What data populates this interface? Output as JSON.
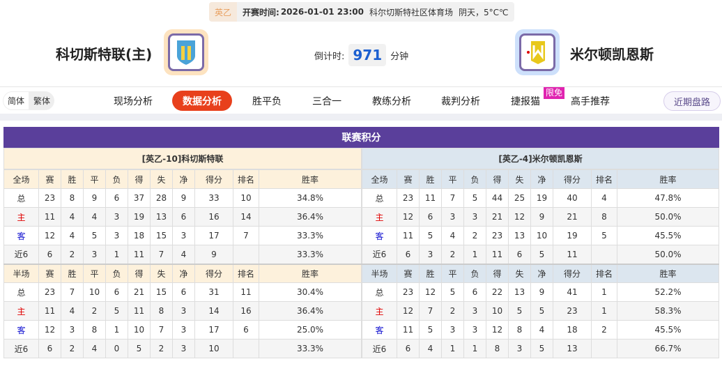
{
  "match": {
    "league": "英乙",
    "time_label": "开赛时间:",
    "time": "2026-01-01 23:00",
    "venue": "科尔切斯特社区体育场",
    "weather": "阴天，5°C℃",
    "home": "科切斯特联(主)",
    "away": "米尔顿凯恩斯",
    "countdown_label": "倒计时:",
    "countdown": "971",
    "countdown_unit": "分钟"
  },
  "nav": {
    "lang": [
      "简体",
      "繁体"
    ],
    "tabs": [
      "现场分析",
      "数据分析",
      "胜平负",
      "三合一",
      "教练分析",
      "裁判分析",
      "捷报猫",
      "高手推荐"
    ],
    "active": "数据分析",
    "badge": "限免",
    "recent": "近期盘路"
  },
  "colors": {
    "accent": "#e8401c",
    "title_bar": "#5a3f9b",
    "home_header": "#fdf1dc",
    "away_header": "#dce6ef"
  },
  "standings": {
    "title": "联赛积分",
    "columns_full": [
      "全场",
      "赛",
      "胜",
      "平",
      "负",
      "得",
      "失",
      "净",
      "得分",
      "排名",
      "胜率"
    ],
    "columns_half": [
      "半场",
      "赛",
      "胜",
      "平",
      "负",
      "得",
      "失",
      "净",
      "得分",
      "排名",
      "胜率"
    ],
    "home": {
      "header": "[英乙-10]科切斯特联",
      "full": [
        [
          "总",
          "23",
          "8",
          "9",
          "6",
          "37",
          "28",
          "9",
          "33",
          "10",
          "34.8%"
        ],
        [
          "主",
          "11",
          "4",
          "4",
          "3",
          "19",
          "13",
          "6",
          "16",
          "14",
          "36.4%"
        ],
        [
          "客",
          "12",
          "4",
          "5",
          "3",
          "18",
          "15",
          "3",
          "17",
          "7",
          "33.3%"
        ],
        [
          "近6",
          "6",
          "2",
          "3",
          "1",
          "11",
          "7",
          "4",
          "9",
          "",
          "33.3%"
        ]
      ],
      "half": [
        [
          "总",
          "23",
          "7",
          "10",
          "6",
          "21",
          "15",
          "6",
          "31",
          "11",
          "30.4%"
        ],
        [
          "主",
          "11",
          "4",
          "2",
          "5",
          "11",
          "8",
          "3",
          "14",
          "16",
          "36.4%"
        ],
        [
          "客",
          "12",
          "3",
          "8",
          "1",
          "10",
          "7",
          "3",
          "17",
          "6",
          "25.0%"
        ],
        [
          "近6",
          "6",
          "2",
          "4",
          "0",
          "5",
          "2",
          "3",
          "10",
          "",
          "33.3%"
        ]
      ]
    },
    "away": {
      "header": "[英乙-4]米尔顿凯恩斯",
      "full": [
        [
          "总",
          "23",
          "11",
          "7",
          "5",
          "44",
          "25",
          "19",
          "40",
          "4",
          "47.8%"
        ],
        [
          "主",
          "12",
          "6",
          "3",
          "3",
          "21",
          "12",
          "9",
          "21",
          "8",
          "50.0%"
        ],
        [
          "客",
          "11",
          "5",
          "4",
          "2",
          "23",
          "13",
          "10",
          "19",
          "5",
          "45.5%"
        ],
        [
          "近6",
          "6",
          "3",
          "2",
          "1",
          "11",
          "6",
          "5",
          "11",
          "",
          "50.0%"
        ]
      ],
      "half": [
        [
          "总",
          "23",
          "12",
          "5",
          "6",
          "22",
          "13",
          "9",
          "41",
          "1",
          "52.2%"
        ],
        [
          "主",
          "12",
          "7",
          "2",
          "3",
          "10",
          "5",
          "5",
          "23",
          "1",
          "58.3%"
        ],
        [
          "客",
          "11",
          "5",
          "3",
          "3",
          "12",
          "8",
          "4",
          "18",
          "2",
          "45.5%"
        ],
        [
          "近6",
          "6",
          "4",
          "1",
          "1",
          "8",
          "3",
          "5",
          "13",
          "",
          "66.7%"
        ]
      ]
    }
  }
}
